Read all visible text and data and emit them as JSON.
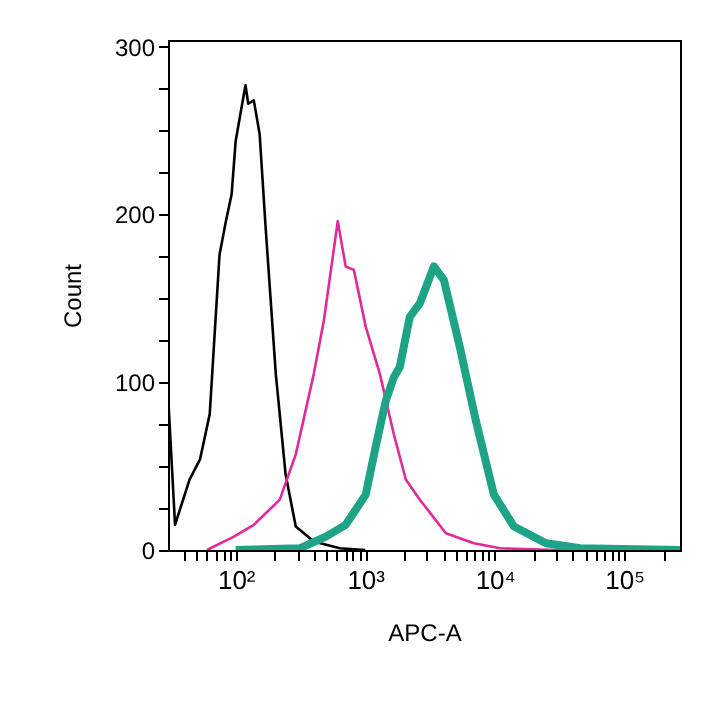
{
  "chart_data": {
    "type": "line",
    "xlabel": "APC-A",
    "ylabel": "Count",
    "log": "x",
    "grid": false,
    "legend": false,
    "marker": "none",
    "line_style": "solid",
    "xlim": [
      30,
      270000
    ],
    "ylim": [
      0,
      304
    ],
    "xticks": [
      {
        "value": 40,
        "label": null
      },
      {
        "value": 50,
        "label": null
      },
      {
        "value": 60,
        "label": null
      },
      {
        "value": 70,
        "label": null
      },
      {
        "value": 80,
        "label": null
      },
      {
        "value": 90,
        "label": null
      },
      {
        "value": 100,
        "label": "10²"
      },
      {
        "value": 200,
        "label": null
      },
      {
        "value": 300,
        "label": null
      },
      {
        "value": 400,
        "label": null
      },
      {
        "value": 500,
        "label": null
      },
      {
        "value": 600,
        "label": null
      },
      {
        "value": 700,
        "label": null
      },
      {
        "value": 800,
        "label": null
      },
      {
        "value": 900,
        "label": null
      },
      {
        "value": 1000,
        "label": "10³"
      },
      {
        "value": 2000,
        "label": null
      },
      {
        "value": 3000,
        "label": null
      },
      {
        "value": 4000,
        "label": null
      },
      {
        "value": 5000,
        "label": null
      },
      {
        "value": 6000,
        "label": null
      },
      {
        "value": 7000,
        "label": null
      },
      {
        "value": 8000,
        "label": null
      },
      {
        "value": 9000,
        "label": null
      },
      {
        "value": 10000,
        "label": "10⁴"
      },
      {
        "value": 20000,
        "label": null
      },
      {
        "value": 30000,
        "label": null
      },
      {
        "value": 40000,
        "label": null
      },
      {
        "value": 50000,
        "label": null
      },
      {
        "value": 60000,
        "label": null
      },
      {
        "value": 70000,
        "label": null
      },
      {
        "value": 80000,
        "label": null
      },
      {
        "value": 90000,
        "label": null
      },
      {
        "value": 100000,
        "label": "10⁵"
      },
      {
        "value": 200000,
        "label": null
      }
    ],
    "yticks": [
      0,
      {
        "value": 25,
        "label": null
      },
      {
        "value": 50,
        "label": null
      },
      {
        "value": 75,
        "label": null
      },
      100,
      {
        "value": 125,
        "label": null
      },
      {
        "value": 150,
        "label": null
      },
      {
        "value": 175,
        "label": null
      },
      200,
      {
        "value": 225,
        "label": null
      },
      {
        "value": 250,
        "label": null
      },
      {
        "value": 275,
        "label": null
      },
      300
    ],
    "series": [
      {
        "color": "#000000",
        "x": [
          30,
          34,
          44,
          53,
          63,
          75,
          84,
          93,
          100,
          119,
          125,
          138,
          153,
          170,
          204,
          243,
          291,
          401,
          636,
          1000
        ],
        "values": [
          93,
          15,
          42,
          54,
          81,
          176,
          196,
          212,
          244,
          277,
          266,
          268,
          248,
          193,
          105,
          45,
          14,
          5,
          1,
          0
        ]
      },
      {
        "color": "#e0299a",
        "x": [
          60,
          97,
          138,
          219,
          291,
          401,
          480,
          614,
          707,
          817,
          1010,
          1298,
          1664,
          2060,
          2644,
          4200,
          6907,
          11000,
          30000,
          270000
        ],
        "values": [
          0,
          8,
          15,
          30,
          57,
          105,
          137,
          196,
          169,
          167,
          133,
          105,
          69,
          42,
          30,
          10,
          4,
          1,
          0,
          0
        ]
      },
      {
        "color": "#1fa386",
        "x": [
          100,
          312,
          497,
          707,
          1010,
          1208,
          1443,
          1664,
          1849,
          2211,
          2644,
          3390,
          4050,
          5380,
          7160,
          9860,
          14100,
          24900,
          45700,
          270000
        ],
        "values": [
          0,
          1,
          8,
          15,
          33,
          62,
          89,
          103,
          109,
          139,
          147,
          169,
          161,
          121,
          77,
          33,
          14,
          4,
          1,
          0
        ]
      }
    ]
  }
}
